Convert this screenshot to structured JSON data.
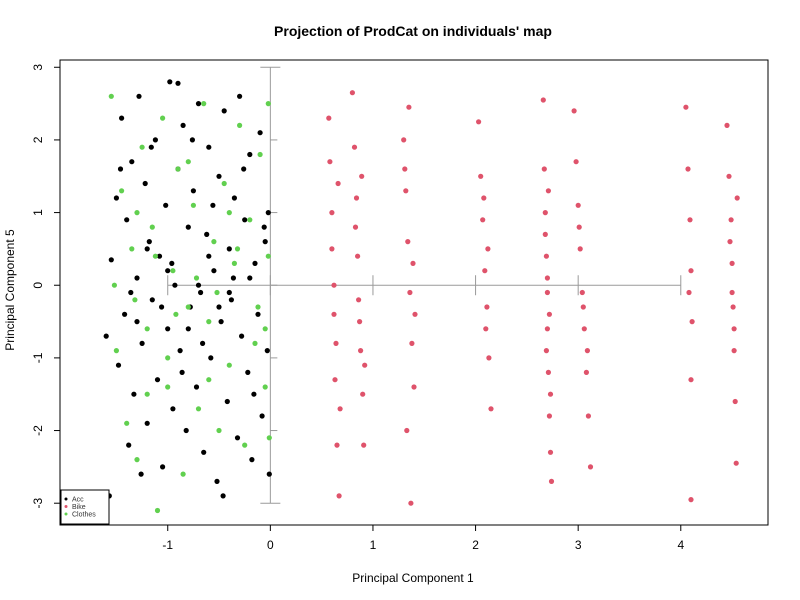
{
  "chart_data": {
    "type": "scatter",
    "title": "Projection of ProdCat on individuals' map",
    "xlabel": "Principal Component 1",
    "ylabel": "Principal Component 5",
    "xlim": [
      -2.05,
      4.85
    ],
    "ylim": [
      -3.3,
      3.1
    ],
    "x_ticks": [
      -1,
      0,
      1,
      2,
      3,
      4
    ],
    "y_ticks": [
      -3,
      -2,
      -1,
      0,
      1,
      2,
      3
    ],
    "grid": false,
    "legend": {
      "position": "bottom-left"
    },
    "series": [
      {
        "name": "Acc",
        "color": "#000000",
        "points": [
          [
            -1.57,
            -2.9
          ],
          [
            -1.55,
            0.35
          ],
          [
            -1.5,
            1.2
          ],
          [
            -1.48,
            -1.1
          ],
          [
            -1.45,
            2.3
          ],
          [
            -1.42,
            -0.4
          ],
          [
            -1.4,
            0.9
          ],
          [
            -1.38,
            -2.2
          ],
          [
            -1.35,
            1.7
          ],
          [
            -1.33,
            -1.5
          ],
          [
            -1.3,
            0.1
          ],
          [
            -1.28,
            2.6
          ],
          [
            -1.25,
            -0.8
          ],
          [
            -1.22,
            1.4
          ],
          [
            -1.2,
            -1.9
          ],
          [
            -1.18,
            0.6
          ],
          [
            -1.15,
            -0.2
          ],
          [
            -1.12,
            2.0
          ],
          [
            -1.1,
            -1.3
          ],
          [
            -1.08,
            0.4
          ],
          [
            -1.05,
            -2.5
          ],
          [
            -1.02,
            1.1
          ],
          [
            -1.0,
            -0.6
          ],
          [
            -0.98,
            2.8
          ],
          [
            -0.95,
            -1.7
          ],
          [
            -0.93,
            0.0
          ],
          [
            -0.9,
            1.6
          ],
          [
            -0.88,
            -0.9
          ],
          [
            -0.85,
            2.2
          ],
          [
            -0.82,
            -2.0
          ],
          [
            -0.8,
            0.8
          ],
          [
            -0.78,
            -0.3
          ],
          [
            -0.75,
            1.3
          ],
          [
            -0.72,
            -1.4
          ],
          [
            -0.7,
            2.5
          ],
          [
            -0.68,
            -0.1
          ],
          [
            -0.65,
            -2.3
          ],
          [
            -0.62,
            0.7
          ],
          [
            -0.6,
            1.9
          ],
          [
            -0.58,
            -1.0
          ],
          [
            -0.55,
            0.2
          ],
          [
            -0.52,
            -2.7
          ],
          [
            -0.5,
            1.5
          ],
          [
            -0.48,
            -0.5
          ],
          [
            -0.45,
            2.4
          ],
          [
            -0.42,
            -1.6
          ],
          [
            -0.4,
            0.5
          ],
          [
            -0.38,
            -0.2
          ],
          [
            -0.35,
            1.2
          ],
          [
            -0.32,
            -2.1
          ],
          [
            -0.3,
            2.6
          ],
          [
            -0.28,
            -0.7
          ],
          [
            -0.25,
            0.9
          ],
          [
            -0.22,
            -1.2
          ],
          [
            -0.2,
            1.8
          ],
          [
            -0.18,
            -2.4
          ],
          [
            -0.15,
            0.3
          ],
          [
            -0.12,
            -0.4
          ],
          [
            -0.1,
            2.1
          ],
          [
            -0.08,
            -1.8
          ],
          [
            -0.05,
            0.6
          ],
          [
            -0.03,
            -0.9
          ],
          [
            -0.02,
            1.0
          ],
          [
            -0.01,
            -2.6
          ],
          [
            -1.6,
            -0.7
          ],
          [
            -1.46,
            1.6
          ],
          [
            -1.36,
            -0.1
          ],
          [
            -1.26,
            -2.6
          ],
          [
            -1.16,
            1.9
          ],
          [
            -1.06,
            -0.3
          ],
          [
            -0.96,
            0.3
          ],
          [
            -0.86,
            -1.2
          ],
          [
            -0.76,
            2.0
          ],
          [
            -0.66,
            -0.8
          ],
          [
            -0.56,
            1.1
          ],
          [
            -0.46,
            -2.9
          ],
          [
            -0.36,
            0.1
          ],
          [
            -0.26,
            1.6
          ],
          [
            -0.16,
            -1.5
          ],
          [
            -0.06,
            0.8
          ],
          [
            -0.9,
            2.78
          ],
          [
            -1.3,
            -0.5
          ],
          [
            -0.7,
            0.0
          ],
          [
            -0.5,
            -0.3
          ],
          [
            -1.0,
            0.2
          ],
          [
            -0.8,
            -0.6
          ],
          [
            -0.6,
            0.4
          ],
          [
            -1.2,
            0.5
          ],
          [
            -0.4,
            -0.1
          ],
          [
            -0.2,
            0.1
          ]
        ]
      },
      {
        "name": "Bike",
        "color": "#DF536B",
        "points": [
          [
            0.57,
            2.3
          ],
          [
            0.58,
            1.7
          ],
          [
            0.6,
            0.5
          ],
          [
            0.62,
            -0.4
          ],
          [
            0.63,
            -1.3
          ],
          [
            0.65,
            -2.2
          ],
          [
            0.67,
            -2.9
          ],
          [
            0.6,
            1.0
          ],
          [
            0.62,
            0.0
          ],
          [
            0.64,
            -0.8
          ],
          [
            0.66,
            1.4
          ],
          [
            0.68,
            -1.7
          ],
          [
            0.8,
            2.65
          ],
          [
            0.82,
            1.9
          ],
          [
            0.84,
            1.2
          ],
          [
            0.85,
            0.4
          ],
          [
            0.86,
            -0.2
          ],
          [
            0.88,
            -0.9
          ],
          [
            0.9,
            -1.5
          ],
          [
            0.91,
            -2.2
          ],
          [
            0.83,
            0.8
          ],
          [
            0.87,
            -0.5
          ],
          [
            0.89,
            1.5
          ],
          [
            0.92,
            -1.1
          ],
          [
            1.3,
            2.0
          ],
          [
            1.32,
            1.3
          ],
          [
            1.34,
            0.6
          ],
          [
            1.36,
            -0.1
          ],
          [
            1.38,
            -0.8
          ],
          [
            1.4,
            -1.4
          ],
          [
            1.35,
            2.45
          ],
          [
            1.33,
            -2.0
          ],
          [
            1.37,
            -3.0
          ],
          [
            1.39,
            0.3
          ],
          [
            1.41,
            -0.4
          ],
          [
            1.31,
            1.6
          ],
          [
            2.03,
            2.25
          ],
          [
            2.05,
            1.5
          ],
          [
            2.07,
            0.9
          ],
          [
            2.09,
            0.2
          ],
          [
            2.11,
            -0.3
          ],
          [
            2.13,
            -1.0
          ],
          [
            2.15,
            -1.7
          ],
          [
            2.08,
            1.2
          ],
          [
            2.1,
            -0.6
          ],
          [
            2.12,
            0.5
          ],
          [
            2.66,
            2.55
          ],
          [
            2.67,
            1.6
          ],
          [
            2.68,
            1.0
          ],
          [
            2.69,
            0.4
          ],
          [
            2.7,
            -0.1
          ],
          [
            2.7,
            -0.6
          ],
          [
            2.71,
            -1.2
          ],
          [
            2.72,
            -1.8
          ],
          [
            2.73,
            -2.3
          ],
          [
            2.74,
            -2.7
          ],
          [
            2.68,
            0.7
          ],
          [
            2.7,
            0.1
          ],
          [
            2.72,
            -0.4
          ],
          [
            2.69,
            -0.9
          ],
          [
            2.71,
            1.3
          ],
          [
            2.73,
            -1.5
          ],
          [
            2.96,
            2.4
          ],
          [
            2.98,
            1.7
          ],
          [
            3.0,
            1.1
          ],
          [
            3.02,
            0.5
          ],
          [
            3.04,
            -0.1
          ],
          [
            3.06,
            -0.6
          ],
          [
            3.08,
            -1.2
          ],
          [
            3.1,
            -1.8
          ],
          [
            3.12,
            -2.5
          ],
          [
            3.01,
            0.8
          ],
          [
            3.05,
            -0.3
          ],
          [
            3.09,
            -0.9
          ],
          [
            4.05,
            2.45
          ],
          [
            4.07,
            1.6
          ],
          [
            4.09,
            0.9
          ],
          [
            4.1,
            0.2
          ],
          [
            4.11,
            -0.5
          ],
          [
            4.1,
            -1.3
          ],
          [
            4.1,
            -2.95
          ],
          [
            4.08,
            -0.1
          ],
          [
            4.45,
            2.2
          ],
          [
            4.47,
            1.5
          ],
          [
            4.49,
            0.9
          ],
          [
            4.5,
            0.3
          ],
          [
            4.51,
            -0.3
          ],
          [
            4.52,
            -0.9
          ],
          [
            4.53,
            -1.6
          ],
          [
            4.54,
            -2.45
          ],
          [
            4.48,
            0.6
          ],
          [
            4.5,
            -0.1
          ],
          [
            4.52,
            -0.6
          ],
          [
            4.55,
            1.2
          ]
        ]
      },
      {
        "name": "Clothes",
        "color": "#61D04F",
        "points": [
          [
            -1.6,
            -3.0
          ],
          [
            -1.55,
            2.6
          ],
          [
            -1.5,
            -0.9
          ],
          [
            -1.45,
            1.3
          ],
          [
            -1.4,
            -1.9
          ],
          [
            -1.35,
            0.5
          ],
          [
            -1.3,
            -2.4
          ],
          [
            -1.25,
            1.9
          ],
          [
            -1.2,
            -0.6
          ],
          [
            -1.15,
            0.8
          ],
          [
            -1.1,
            -3.1
          ],
          [
            -1.05,
            2.3
          ],
          [
            -1.0,
            -1.4
          ],
          [
            -0.95,
            0.2
          ],
          [
            -0.9,
            1.6
          ],
          [
            -0.85,
            -2.6
          ],
          [
            -0.8,
            -0.3
          ],
          [
            -0.75,
            1.1
          ],
          [
            -0.7,
            -1.7
          ],
          [
            -0.65,
            2.5
          ],
          [
            -0.6,
            -0.5
          ],
          [
            -0.55,
            0.6
          ],
          [
            -0.5,
            -2.0
          ],
          [
            -0.45,
            1.4
          ],
          [
            -0.4,
            -1.1
          ],
          [
            -0.35,
            0.3
          ],
          [
            -0.3,
            2.2
          ],
          [
            -0.25,
            -2.2
          ],
          [
            -0.2,
            0.9
          ],
          [
            -0.15,
            -0.8
          ],
          [
            -0.1,
            1.8
          ],
          [
            -0.05,
            -1.4
          ],
          [
            -0.02,
            0.4
          ],
          [
            -0.01,
            -2.1
          ],
          [
            -1.52,
            0.0
          ],
          [
            -1.32,
            -0.2
          ],
          [
            -1.12,
            0.4
          ],
          [
            -0.92,
            -0.4
          ],
          [
            -0.72,
            0.1
          ],
          [
            -0.52,
            -0.1
          ],
          [
            -0.32,
            0.5
          ],
          [
            -0.12,
            -0.3
          ],
          [
            -0.02,
            2.5
          ],
          [
            -0.05,
            -0.6
          ],
          [
            -0.8,
            1.7
          ],
          [
            -1.0,
            -1.0
          ],
          [
            -0.4,
            1.0
          ],
          [
            -0.6,
            -1.3
          ],
          [
            -1.3,
            1.0
          ],
          [
            -1.2,
            -1.5
          ]
        ]
      }
    ],
    "reference_lines": [
      {
        "orientation": "vertical",
        "x": 0,
        "y_range": [
          -3,
          3
        ]
      },
      {
        "orientation": "horizontal",
        "y": 0,
        "x_range": [
          -1,
          4
        ],
        "ticks_at": [
          -1,
          0,
          1,
          2,
          3,
          4
        ]
      }
    ]
  }
}
